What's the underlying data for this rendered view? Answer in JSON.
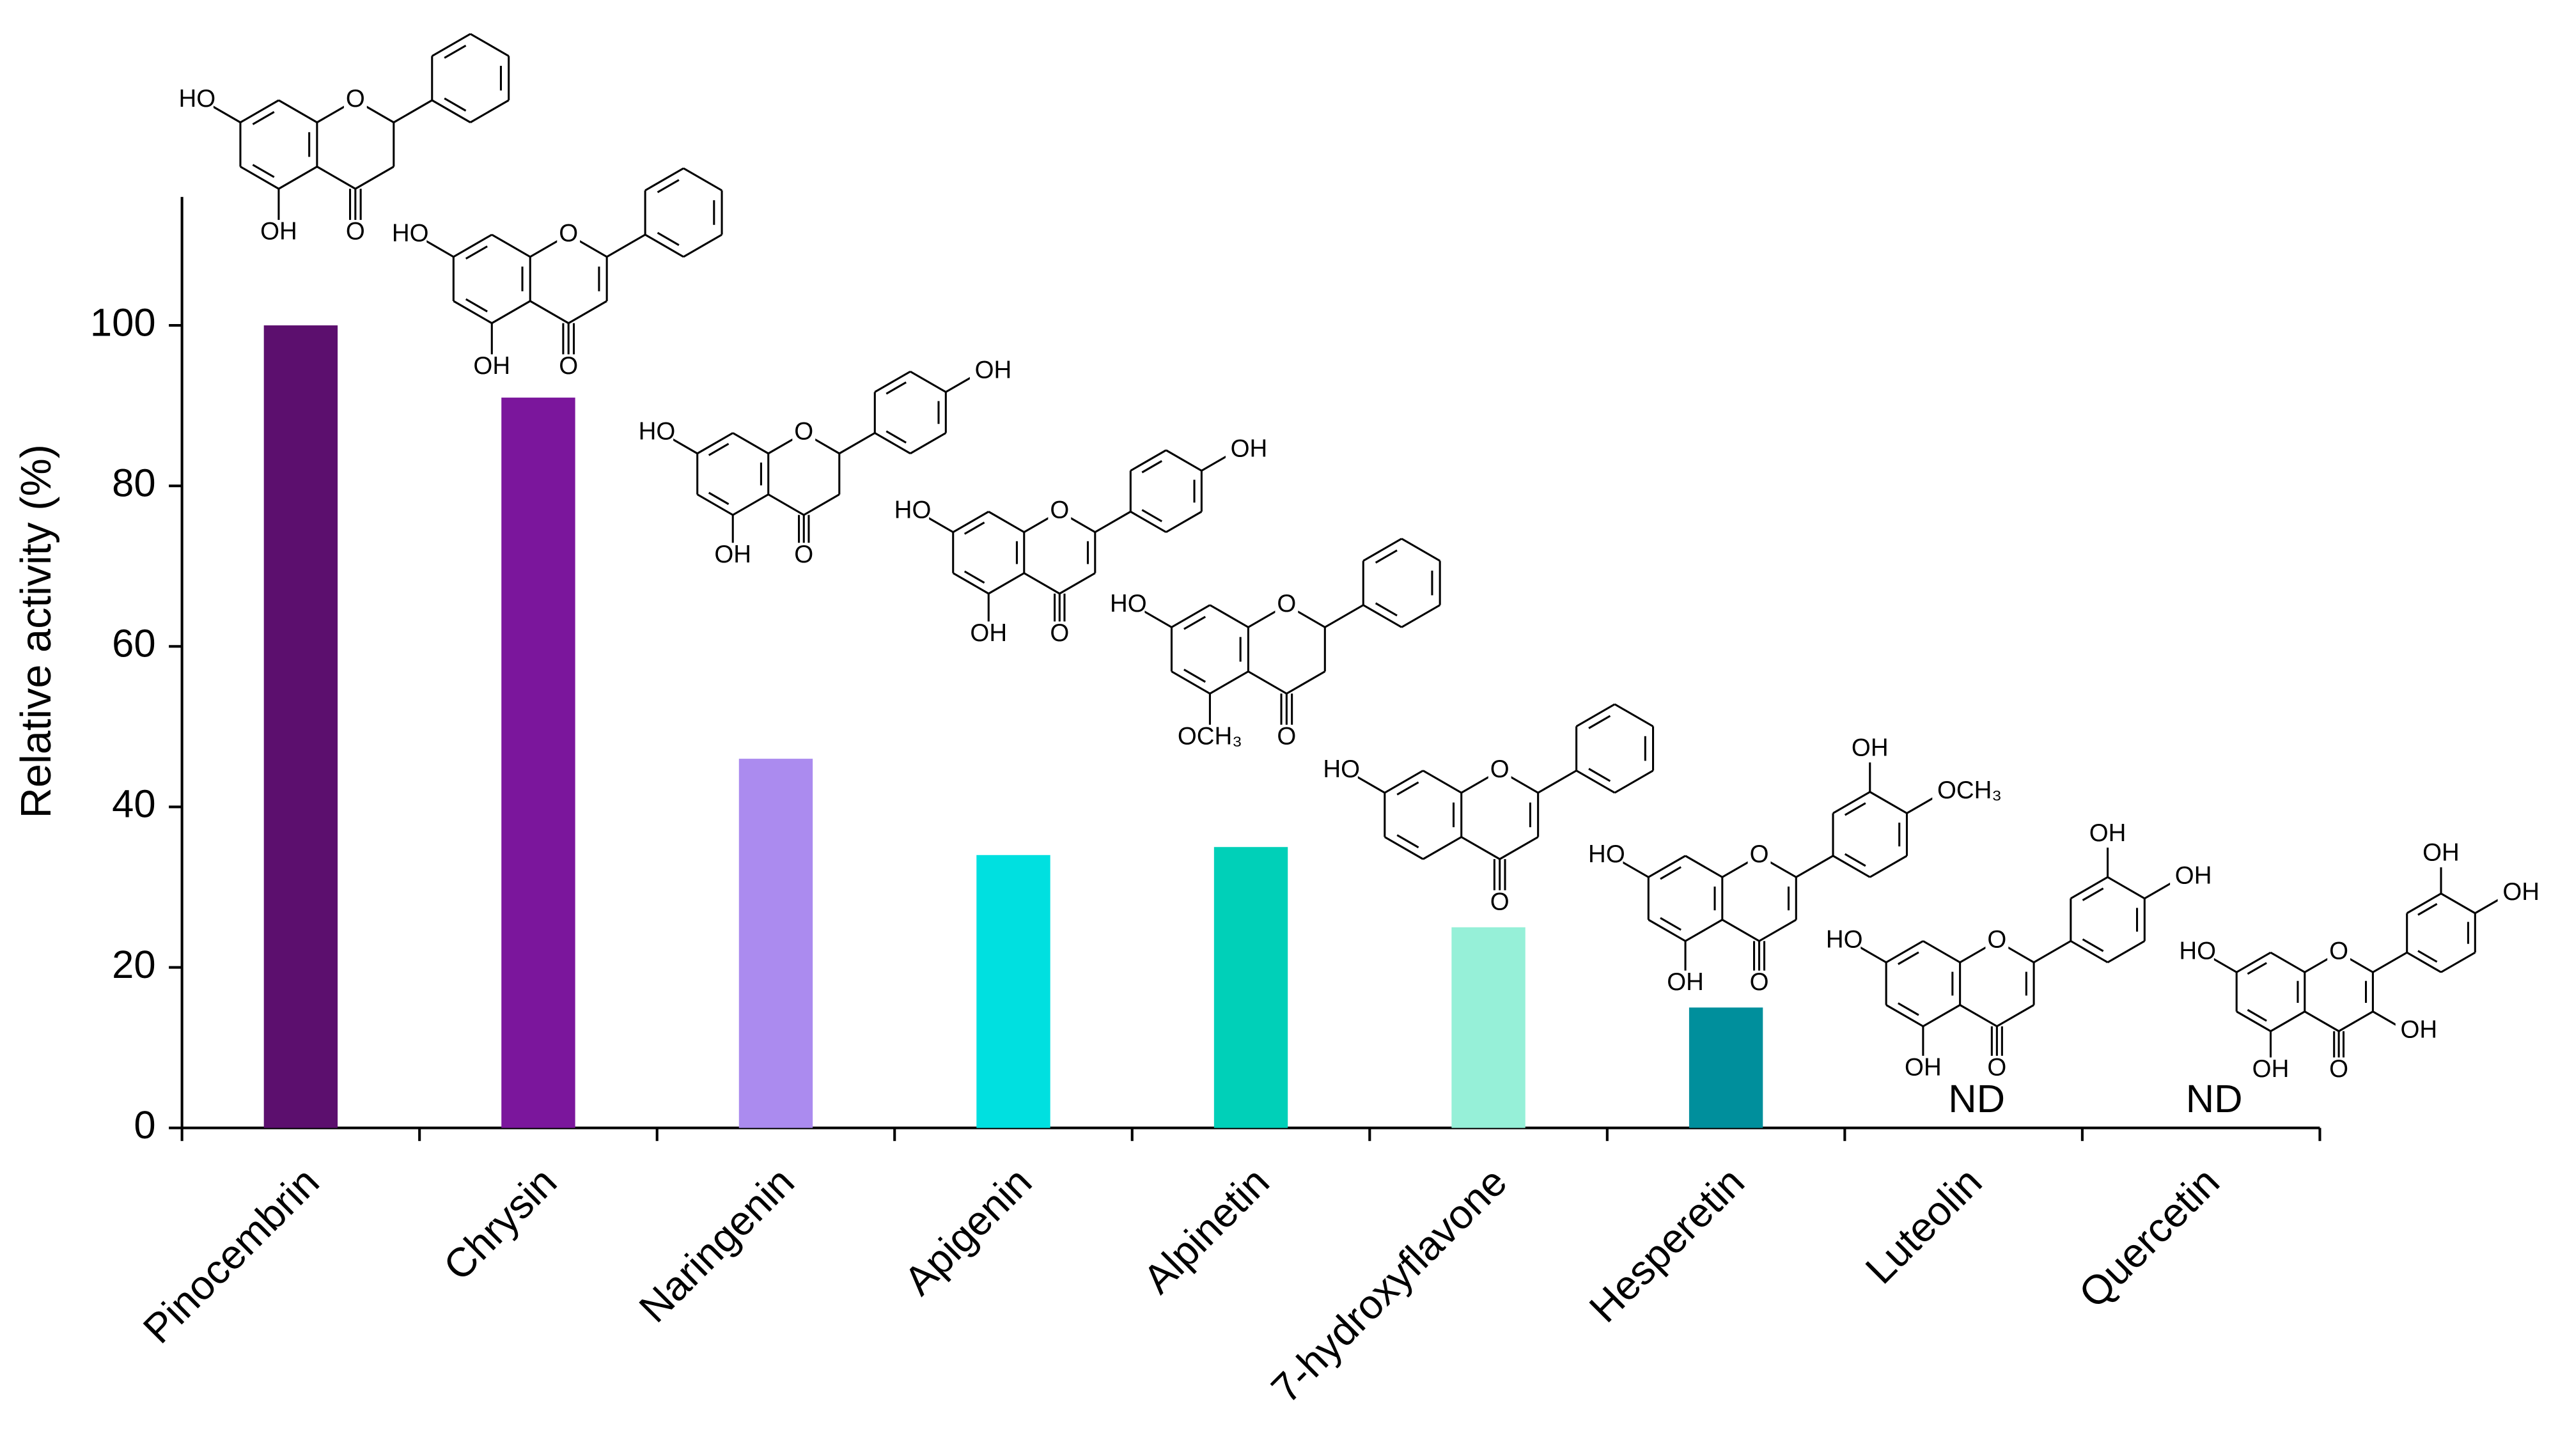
{
  "chart_data": {
    "type": "bar",
    "y_label": "Relative activity (%)",
    "categories": [
      "Pinocembrin",
      "Chrysin",
      "Naringenin",
      "Apigenin",
      "Alpinetin",
      "7-hydroxyflavone",
      "Hesperetin",
      "Luteolin",
      "Quercetin"
    ],
    "values": [
      100,
      91,
      46,
      34,
      35,
      25,
      15,
      null,
      null
    ],
    "value_labels": [
      null,
      null,
      null,
      null,
      null,
      null,
      null,
      "ND",
      "ND"
    ],
    "colors": [
      "#5c0f6e",
      "#7b169c",
      "#ab8bef",
      "#00e0e0",
      "#00d0b8",
      "#96f0d8",
      "#008f9c",
      null,
      null
    ],
    "ylim": [
      0,
      116
    ],
    "yticks": [
      0,
      20,
      40,
      60,
      80,
      100
    ],
    "grid": false,
    "structures": [
      [
        "HO",
        "O",
        "OH",
        "O"
      ],
      [
        "HO",
        "O",
        "OH",
        "O"
      ],
      [
        "HO",
        "O",
        "OH",
        "O",
        "OH"
      ],
      [
        "HO",
        "O",
        "OH",
        "O",
        "OH"
      ],
      [
        "HO",
        "O",
        "OCH₃",
        "O"
      ],
      [
        "HO",
        "O",
        "O"
      ],
      [
        "HO",
        "O",
        "OH",
        "O",
        "OH",
        "OCH₃"
      ],
      [
        "HO",
        "O",
        "OH",
        "O",
        "OH",
        "OH"
      ],
      [
        "HO",
        "O",
        "OH",
        "O",
        "OH",
        "OH",
        "OH"
      ]
    ]
  }
}
